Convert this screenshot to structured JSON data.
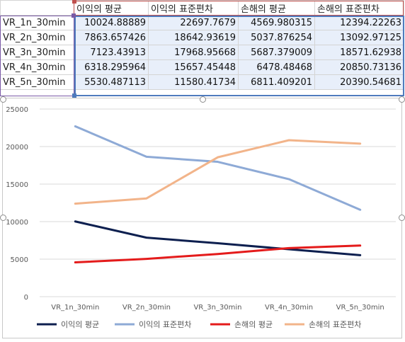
{
  "table": {
    "headers": [
      "이익의 평균",
      "이익의 표준편차",
      "손해의 평균",
      "손해의 표준편차"
    ],
    "rows": [
      {
        "label": "VR_1n_30min",
        "values": [
          "10024.88889",
          "22697.7679",
          "4569.980315",
          "12394.22263"
        ]
      },
      {
        "label": "VR_2n_30min",
        "values": [
          "7863.657426",
          "18642.93619",
          "5037.876254",
          "13092.97125"
        ]
      },
      {
        "label": "VR_3n_30min",
        "values": [
          "7123.43913",
          "17968.95668",
          "5687.379009",
          "18571.62938"
        ]
      },
      {
        "label": "VR_4n_30min",
        "values": [
          "6318.295964",
          "15657.45448",
          "6478.48468",
          "20850.73136"
        ]
      },
      {
        "label": "VR_5n_30min",
        "values": [
          "5530.487113",
          "11580.41734",
          "6811.409201",
          "20390.54681"
        ]
      }
    ]
  },
  "chart_data": {
    "type": "line",
    "title": "",
    "xlabel": "",
    "ylabel": "",
    "categories": [
      "VR_1n_30min",
      "VR_2n_30min",
      "VR_3n_30min",
      "VR_4n_30min",
      "VR_5n_30min"
    ],
    "ylim": [
      0,
      25000
    ],
    "yticks": [
      "0",
      "5000",
      "10000",
      "15000",
      "20000",
      "25000"
    ],
    "grid": "horizontal",
    "legend": "bottom",
    "series": [
      {
        "name": "이익의 평균",
        "color": "#0d1f4f",
        "values": [
          10024.88889,
          7863.657426,
          7123.43913,
          6318.295964,
          5530.487113
        ]
      },
      {
        "name": "이익의 표준편차",
        "color": "#8eaad6",
        "values": [
          22697.7679,
          18642.93619,
          17968.95668,
          15657.45448,
          11580.41734
        ]
      },
      {
        "name": "손해의 평균",
        "color": "#e41b1b",
        "values": [
          4569.980315,
          5037.876254,
          5687.379009,
          6478.48468,
          6811.409201
        ]
      },
      {
        "name": "손해의 표준편차",
        "color": "#f2b48a",
        "values": [
          12394.22263,
          13092.97125,
          18571.62938,
          20850.73136,
          20390.54681
        ]
      }
    ]
  }
}
